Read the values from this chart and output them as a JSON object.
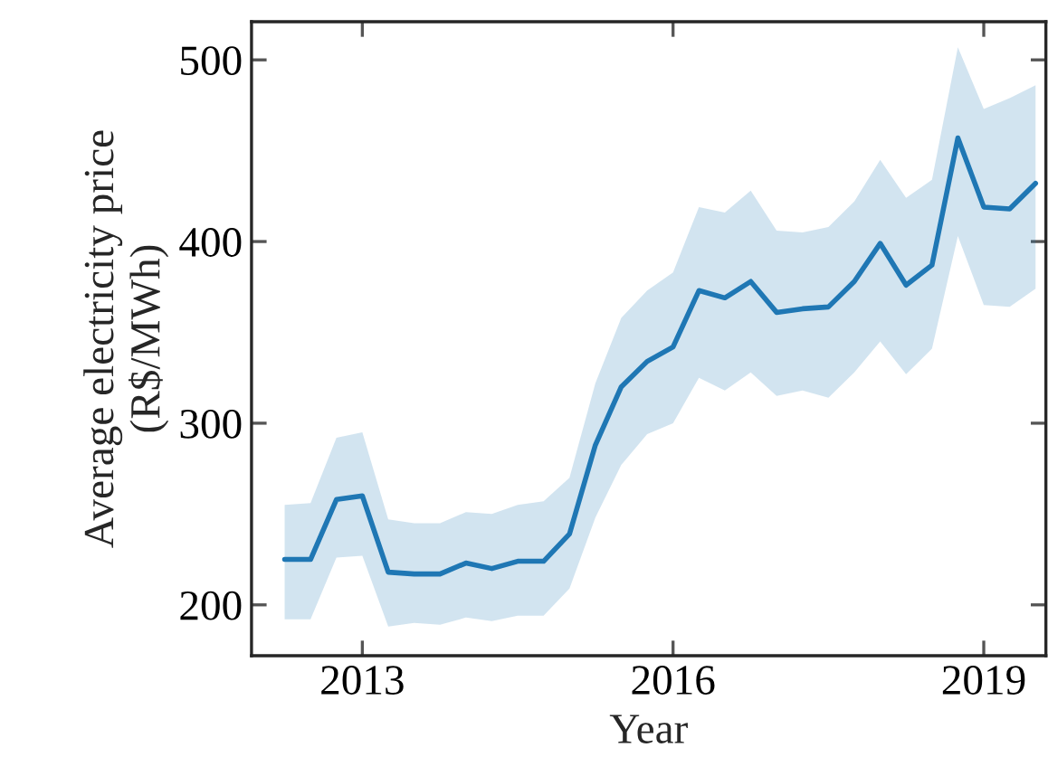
{
  "chart_data": {
    "type": "line",
    "xlabel": "Year",
    "ylabel": "Average electricity price\n(R$/MWh)",
    "x": [
      2012.25,
      2012.5,
      2012.75,
      2013,
      2013.25,
      2013.5,
      2013.75,
      2014,
      2014.25,
      2014.5,
      2014.75,
      2015,
      2015.25,
      2015.5,
      2015.75,
      2016,
      2016.25,
      2016.5,
      2016.75,
      2017,
      2017.25,
      2017.5,
      2017.75,
      2018,
      2018.25,
      2018.5,
      2018.75,
      2019,
      2019.25,
      2019.5
    ],
    "series": [
      {
        "color": "#1f77b4",
        "values": [
          225,
          225,
          258,
          260,
          218,
          217,
          217,
          223,
          220,
          224,
          224,
          239,
          288,
          320,
          334,
          342,
          373,
          369,
          378,
          361,
          363,
          364,
          378,
          399,
          376,
          387,
          457,
          419,
          418,
          432
        ],
        "upper": [
          255,
          256,
          292,
          295,
          247,
          245,
          245,
          251,
          250,
          255,
          257,
          270,
          322,
          358,
          373,
          383,
          419,
          416,
          428,
          406,
          405,
          408,
          422,
          445,
          424,
          434,
          507,
          473,
          479,
          486
        ],
        "lower": [
          192,
          192,
          226,
          227,
          188,
          190,
          189,
          193,
          191,
          194,
          194,
          209,
          248,
          277,
          294,
          300,
          325,
          318,
          328,
          315,
          318,
          314,
          328,
          345,
          327,
          341,
          403,
          365,
          364,
          374
        ]
      }
    ],
    "xlim": [
      2011.93,
      2019.6
    ],
    "ylim": [
      172,
      521
    ],
    "xticks": [
      2013,
      2016,
      2019
    ],
    "yticks": [
      200,
      300,
      400,
      500
    ],
    "grid": false,
    "legend": false,
    "line_style": "solid",
    "marker": "none"
  }
}
